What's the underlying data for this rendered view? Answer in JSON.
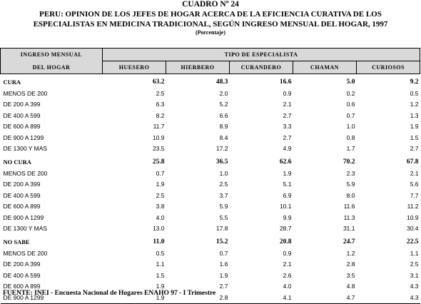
{
  "header": {
    "cuadro": "CUADRO Nº 24",
    "title_line1": "PERU: OPINION DE LOS JEFES DE HOGAR ACERCA DE LA EFICIENCIA CURATIVA DE LOS",
    "title_line2": "ESPECIALISTAS EN MEDICINA TRADICIONAL, SEGÚN INGRESO MENSUAL DEL HOGAR, 1997",
    "unit": "(Porcentaje)"
  },
  "table": {
    "stub_header_1": "INGRESO MENSUAL",
    "stub_header_2": "DEL HOGAR",
    "group_header": "TIPO DE ESPECIALISTA",
    "columns": [
      "HUESERO",
      "HIERBERO",
      "CURANDERO",
      "CHAMAN",
      "CURIOSOS"
    ],
    "sections": [
      {
        "label": "CURA",
        "totals": [
          "63.2",
          "48.3",
          "16.6",
          "5.0",
          "9.2"
        ],
        "rows": [
          {
            "label": "MENOS DE 200",
            "values": [
              "2.5",
              "2.0",
              "0.9",
              "0.2",
              "0.5"
            ]
          },
          {
            "label": "DE 200 A 399",
            "values": [
              "6.3",
              "5.2",
              "2.1",
              "0.6",
              "1.2"
            ]
          },
          {
            "label": "DE 400 A 599",
            "values": [
              "8.2",
              "6.6",
              "2.7",
              "0.7",
              "1.3"
            ]
          },
          {
            "label": "DE 600 A 899",
            "values": [
              "11.7",
              "8.9",
              "3.3",
              "1.0",
              "1.9"
            ]
          },
          {
            "label": "DE 900 A 1299",
            "values": [
              "10.9",
              "8.4",
              "2.7",
              "0.8",
              "1.5"
            ]
          },
          {
            "label": "DE 1300 Y MAS",
            "values": [
              "23.5",
              "17.2",
              "4.9",
              "1.7",
              "2.7"
            ]
          }
        ]
      },
      {
        "label": "NO  CURA",
        "totals": [
          "25.8",
          "36.5",
          "62.6",
          "70.2",
          "67.8"
        ],
        "rows": [
          {
            "label": "MENOS DE 200",
            "values": [
              "0.7",
              "1.0",
              "1.9",
              "2.3",
              "2.1"
            ]
          },
          {
            "label": "DE 200 A 399",
            "values": [
              "1.9",
              "2.5",
              "5.1",
              "5.9",
              "5.6"
            ]
          },
          {
            "label": "DE 400 A 599",
            "values": [
              "2.5",
              "3.7",
              "6.9",
              "8.0",
              "7.7"
            ]
          },
          {
            "label": "DE 600 A 899",
            "values": [
              "3.8",
              "5.9",
              "10.1",
              "11.6",
              "11.2"
            ]
          },
          {
            "label": "DE 900 A 1299",
            "values": [
              "4.0",
              "5.5",
              "9.9",
              "11.3",
              "10.9"
            ]
          },
          {
            "label": "DE 1300 Y MAS",
            "values": [
              "13.0",
              "17.8",
              "28.7",
              "31.1",
              "30.4"
            ]
          }
        ]
      },
      {
        "label": "NO SABE",
        "totals": [
          "11.0",
          "15.2",
          "20.8",
          "24.7",
          "22.5"
        ],
        "rows": [
          {
            "label": "MENOS DE 200",
            "values": [
              "0.5",
              "0.7",
              "0.9",
              "1.2",
              "1.1"
            ]
          },
          {
            "label": "DE 200 A 399",
            "values": [
              "1.1",
              "1.6",
              "2.1",
              "2.8",
              "2.5"
            ]
          },
          {
            "label": "DE 400 A 599",
            "values": [
              "1.5",
              "1.9",
              "2.6",
              "3.5",
              "3.1"
            ]
          },
          {
            "label": "DE 600 A 899",
            "values": [
              "1.9",
              "2.7",
              "4.0",
              "4.8",
              "4.3"
            ]
          },
          {
            "label": "DE 900 A 1299",
            "values": [
              "1.9",
              "2.8",
              "4.1",
              "4.7",
              "4.3"
            ]
          }
        ]
      }
    ]
  },
  "footer": {
    "source": "FUENTE: INEI - Encuesta Nacional de Hogares ENAHO 97 - I Trimestre"
  }
}
